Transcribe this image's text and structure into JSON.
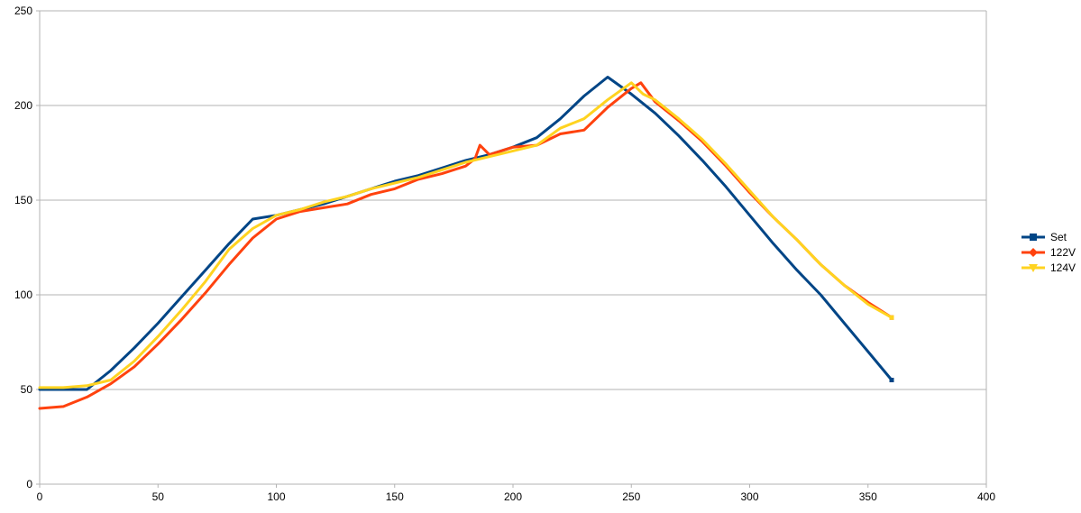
{
  "chart_data": {
    "type": "line",
    "title": "",
    "xlabel": "",
    "ylabel": "",
    "xlim": [
      0,
      400
    ],
    "ylim": [
      0,
      250
    ],
    "x_ticks": [
      0,
      50,
      100,
      150,
      200,
      250,
      300,
      350,
      400
    ],
    "y_ticks": [
      0,
      50,
      100,
      150,
      200,
      250
    ],
    "grid": "horizontal",
    "legend_position": "right",
    "series": [
      {
        "name": "Set",
        "color": "#004586",
        "marker": "square",
        "points": [
          [
            0,
            50
          ],
          [
            20,
            50
          ],
          [
            30,
            60
          ],
          [
            40,
            72
          ],
          [
            50,
            85
          ],
          [
            60,
            99
          ],
          [
            70,
            113
          ],
          [
            80,
            127
          ],
          [
            90,
            140
          ],
          [
            100,
            142
          ],
          [
            110,
            145
          ],
          [
            120,
            148
          ],
          [
            130,
            152
          ],
          [
            140,
            156
          ],
          [
            150,
            160
          ],
          [
            160,
            163
          ],
          [
            170,
            167
          ],
          [
            180,
            171
          ],
          [
            190,
            174
          ],
          [
            200,
            178
          ],
          [
            210,
            183
          ],
          [
            220,
            193
          ],
          [
            230,
            205
          ],
          [
            240,
            215
          ],
          [
            250,
            206
          ],
          [
            260,
            196
          ],
          [
            270,
            184
          ],
          [
            280,
            171
          ],
          [
            290,
            157
          ],
          [
            300,
            142
          ],
          [
            310,
            127
          ],
          [
            320,
            113
          ],
          [
            330,
            100
          ],
          [
            340,
            85
          ],
          [
            350,
            70
          ],
          [
            360,
            55
          ]
        ]
      },
      {
        "name": "122V",
        "color": "#ff420e",
        "marker": "diamond",
        "points": [
          [
            0,
            40
          ],
          [
            10,
            41
          ],
          [
            20,
            46
          ],
          [
            30,
            53
          ],
          [
            40,
            62
          ],
          [
            50,
            74
          ],
          [
            60,
            87
          ],
          [
            70,
            101
          ],
          [
            80,
            116
          ],
          [
            90,
            130
          ],
          [
            100,
            140
          ],
          [
            110,
            144
          ],
          [
            120,
            146
          ],
          [
            130,
            148
          ],
          [
            140,
            153
          ],
          [
            150,
            156
          ],
          [
            160,
            161
          ],
          [
            170,
            164
          ],
          [
            180,
            168
          ],
          [
            184,
            172
          ],
          [
            186,
            179
          ],
          [
            190,
            174
          ],
          [
            200,
            178
          ],
          [
            210,
            179
          ],
          [
            220,
            185
          ],
          [
            230,
            187
          ],
          [
            240,
            199
          ],
          [
            250,
            209
          ],
          [
            254,
            212
          ],
          [
            260,
            202
          ],
          [
            270,
            192
          ],
          [
            280,
            181
          ],
          [
            290,
            168
          ],
          [
            300,
            154
          ],
          [
            310,
            141
          ],
          [
            320,
            129
          ],
          [
            330,
            116
          ],
          [
            340,
            105
          ],
          [
            350,
            96
          ],
          [
            360,
            88
          ]
        ]
      },
      {
        "name": "124V",
        "color": "#ffd320",
        "marker": "triangle-down",
        "points": [
          [
            0,
            51
          ],
          [
            10,
            51
          ],
          [
            20,
            52
          ],
          [
            30,
            55
          ],
          [
            40,
            65
          ],
          [
            50,
            78
          ],
          [
            60,
            92
          ],
          [
            70,
            107
          ],
          [
            80,
            124
          ],
          [
            90,
            135
          ],
          [
            100,
            142
          ],
          [
            110,
            145
          ],
          [
            120,
            149
          ],
          [
            130,
            152
          ],
          [
            140,
            156
          ],
          [
            150,
            159
          ],
          [
            160,
            162
          ],
          [
            170,
            166
          ],
          [
            180,
            170
          ],
          [
            190,
            173
          ],
          [
            200,
            176
          ],
          [
            210,
            179
          ],
          [
            220,
            188
          ],
          [
            230,
            193
          ],
          [
            240,
            203
          ],
          [
            250,
            212
          ],
          [
            255,
            206
          ],
          [
            260,
            203
          ],
          [
            270,
            193
          ],
          [
            280,
            182
          ],
          [
            290,
            169
          ],
          [
            300,
            155
          ],
          [
            310,
            141
          ],
          [
            320,
            129
          ],
          [
            330,
            116
          ],
          [
            340,
            105
          ],
          [
            350,
            95
          ],
          [
            360,
            88
          ]
        ]
      }
    ]
  }
}
